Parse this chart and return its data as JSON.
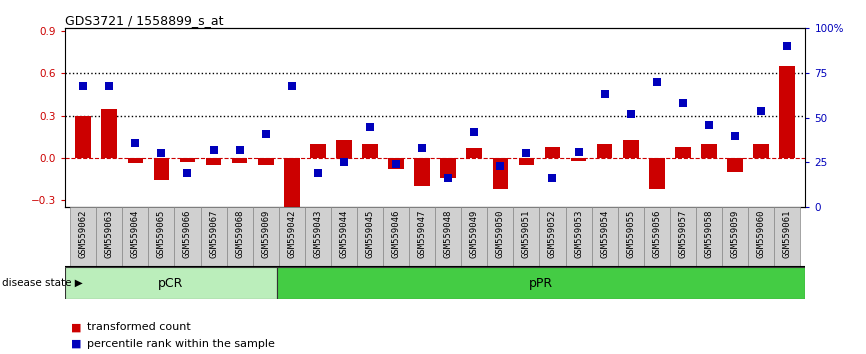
{
  "title": "GDS3721 / 1558899_s_at",
  "samples": [
    "GSM559062",
    "GSM559063",
    "GSM559064",
    "GSM559065",
    "GSM559066",
    "GSM559067",
    "GSM559068",
    "GSM559069",
    "GSM559042",
    "GSM559043",
    "GSM559044",
    "GSM559045",
    "GSM559046",
    "GSM559047",
    "GSM559048",
    "GSM559049",
    "GSM559050",
    "GSM559051",
    "GSM559052",
    "GSM559053",
    "GSM559054",
    "GSM559055",
    "GSM559056",
    "GSM559057",
    "GSM559058",
    "GSM559059",
    "GSM559060",
    "GSM559061"
  ],
  "red_bars": [
    0.3,
    0.35,
    -0.04,
    -0.16,
    -0.03,
    -0.05,
    -0.04,
    -0.05,
    -0.36,
    0.1,
    0.13,
    0.1,
    -0.08,
    -0.2,
    -0.14,
    0.07,
    -0.22,
    -0.05,
    0.08,
    -0.02,
    0.1,
    0.13,
    -0.22,
    0.08,
    0.1,
    -0.1,
    0.1,
    0.65
  ],
  "blue_percentiles": [
    68,
    68,
    36,
    30,
    19,
    32,
    32,
    41,
    68,
    19,
    25,
    45,
    24,
    33,
    16,
    42,
    23,
    30,
    16,
    31,
    63,
    52,
    70,
    58,
    46,
    40,
    54,
    90
  ],
  "pCR_count": 8,
  "pPR_count": 20,
  "left_ylim": [
    -0.35,
    0.92
  ],
  "right_ylim": [
    0,
    100
  ],
  "left_yticks": [
    -0.3,
    0.0,
    0.3,
    0.6,
    0.9
  ],
  "right_yticks": [
    0,
    25,
    50,
    75,
    100
  ],
  "right_yticklabels": [
    "0",
    "25",
    "50",
    "75",
    "100%"
  ],
  "bar_color": "#CC0000",
  "dot_color": "#0000BB",
  "pCR_facecolor": "#BBEEBB",
  "pPR_facecolor": "#44CC44",
  "legend_red": "transformed count",
  "legend_blue": "percentile rank within the sample",
  "hline_dotted_values": [
    0.3,
    0.6
  ],
  "hline_dashed_value": 0.0,
  "tick_label_bg": "#D0D0D0",
  "tick_label_fontsize": 6.5
}
